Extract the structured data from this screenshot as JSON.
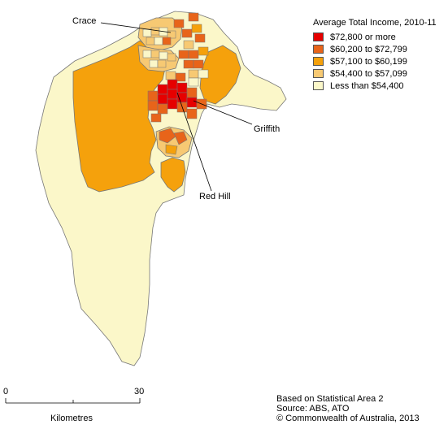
{
  "legend": {
    "title": "Average Total Income, 2010-11",
    "items": [
      {
        "label": "$72,800  or more",
        "color": "#e60000"
      },
      {
        "label": "$60,200  to $72,799",
        "color": "#e8641a"
      },
      {
        "label": "$57,100  to $60,199",
        "color": "#f5a10c"
      },
      {
        "label": "$54,400  to $57,099",
        "color": "#f7c973"
      },
      {
        "label": "Less than $54,400",
        "color": "#fbf7c9"
      }
    ]
  },
  "labels": {
    "crace": "Crace",
    "griffith": "Griffith",
    "red_hill": "Red Hill"
  },
  "scale": {
    "min_label": "0",
    "max_label": "30",
    "unit": "Kilometres"
  },
  "footer": {
    "line1": "Based on Statistical Area 2",
    "line2": "Source: ABS, ATO",
    "line3": "© Commonwealth of Australia, 2013"
  }
}
